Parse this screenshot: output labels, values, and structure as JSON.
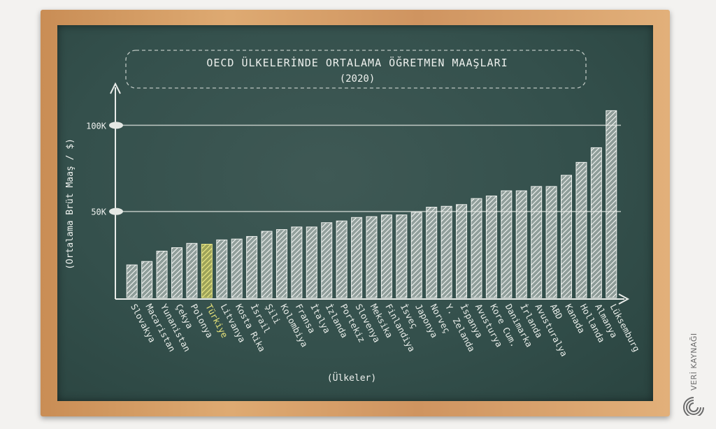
{
  "chart_data": {
    "type": "bar",
    "title": "OECD ÜLKELERİNDE ORTALAMA ÖĞRETMEN MAAŞLARI",
    "subtitle": "(2020)",
    "xlabel": "(Ülkeler)",
    "ylabel": "(Ortalama Brüt Maaş / $)",
    "yticks": [
      {
        "value": 50000,
        "label": "50K"
      },
      {
        "value": 100000,
        "label": "100K"
      }
    ],
    "ylim": [
      0,
      120000
    ],
    "grid": "horizontal at ticks",
    "highlight": "Türkiye",
    "categories": [
      "Slovakya",
      "Macaristan",
      "Yunanistan",
      "Çekya",
      "Polonya",
      "Türkiye",
      "Litvanya",
      "Kosta Rika",
      "İsrail",
      "Şili",
      "Kolombiya",
      "Fransa",
      "İtalya",
      "İzlanda",
      "Portekiz",
      "Slovenya",
      "Meksika",
      "Finlandiya",
      "İsveç",
      "Japonya",
      "Norveç",
      "Y. Zelanda",
      "İspanya",
      "Avusturya",
      "Kore Cum.",
      "Danimarka",
      "İrlanda",
      "Avusturalya",
      "ABD",
      "Kanada",
      "Hollanda",
      "Almanya",
      "Lüksemburg"
    ],
    "values": [
      19000,
      21000,
      27000,
      29000,
      31500,
      31000,
      33500,
      34000,
      35500,
      38500,
      39500,
      41000,
      41000,
      43500,
      44500,
      46500,
      47000,
      48000,
      48000,
      49500,
      52500,
      53000,
      54000,
      57500,
      59000,
      62000,
      62000,
      64500,
      64500,
      71000,
      78500,
      87000,
      108500
    ]
  },
  "logo": {
    "text": "VERİ KAYNAĞI",
    "icon": "spiral-logo-icon"
  },
  "colors": {
    "board": "#34504c",
    "chalk": "#e8ece8",
    "highlight": "#e6e27a",
    "frame": "#d9a36a"
  }
}
